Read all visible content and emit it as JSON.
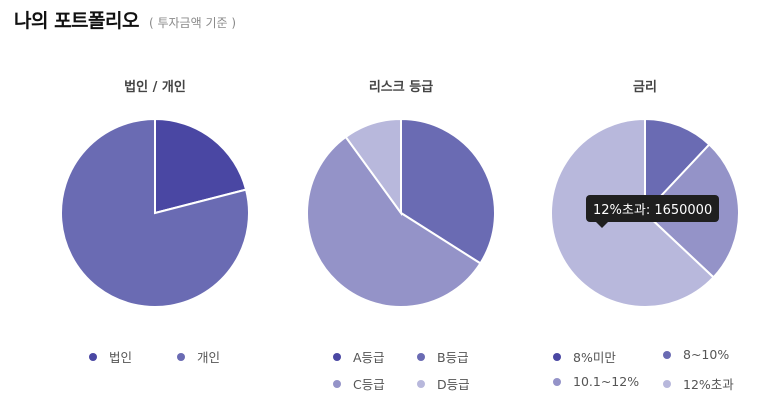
{
  "header": {
    "title": "나의 포트폴리오",
    "subtitle": "( 투자금액 기준 )"
  },
  "chart_data": [
    {
      "type": "pie",
      "title": "법인 / 개인",
      "labels": [
        "법인",
        "개인"
      ],
      "values": [
        21,
        79
      ],
      "colors": [
        "#4a47a3",
        "#6a6bb3"
      ],
      "legend_placement": "bottom"
    },
    {
      "type": "pie",
      "title": "리스크 등급",
      "labels": [
        "A등급",
        "B등급",
        "C등급",
        "D등급"
      ],
      "values": [
        0,
        34,
        56,
        10
      ],
      "colors": [
        "#4a47a3",
        "#6a6bb3",
        "#9493c8",
        "#b8b8dc"
      ],
      "legend_placement": "bottom"
    },
    {
      "type": "pie",
      "title": "금리",
      "labels": [
        "8%미만",
        "8~10%",
        "10.1~12%",
        "12%초과"
      ],
      "values": [
        0,
        12,
        25,
        63
      ],
      "colors": [
        "#4a47a3",
        "#6a6bb3",
        "#9493c8",
        "#b8b8dc"
      ],
      "legend_placement": "bottom"
    }
  ],
  "tooltip": {
    "text": "12%초과: 1650000"
  }
}
